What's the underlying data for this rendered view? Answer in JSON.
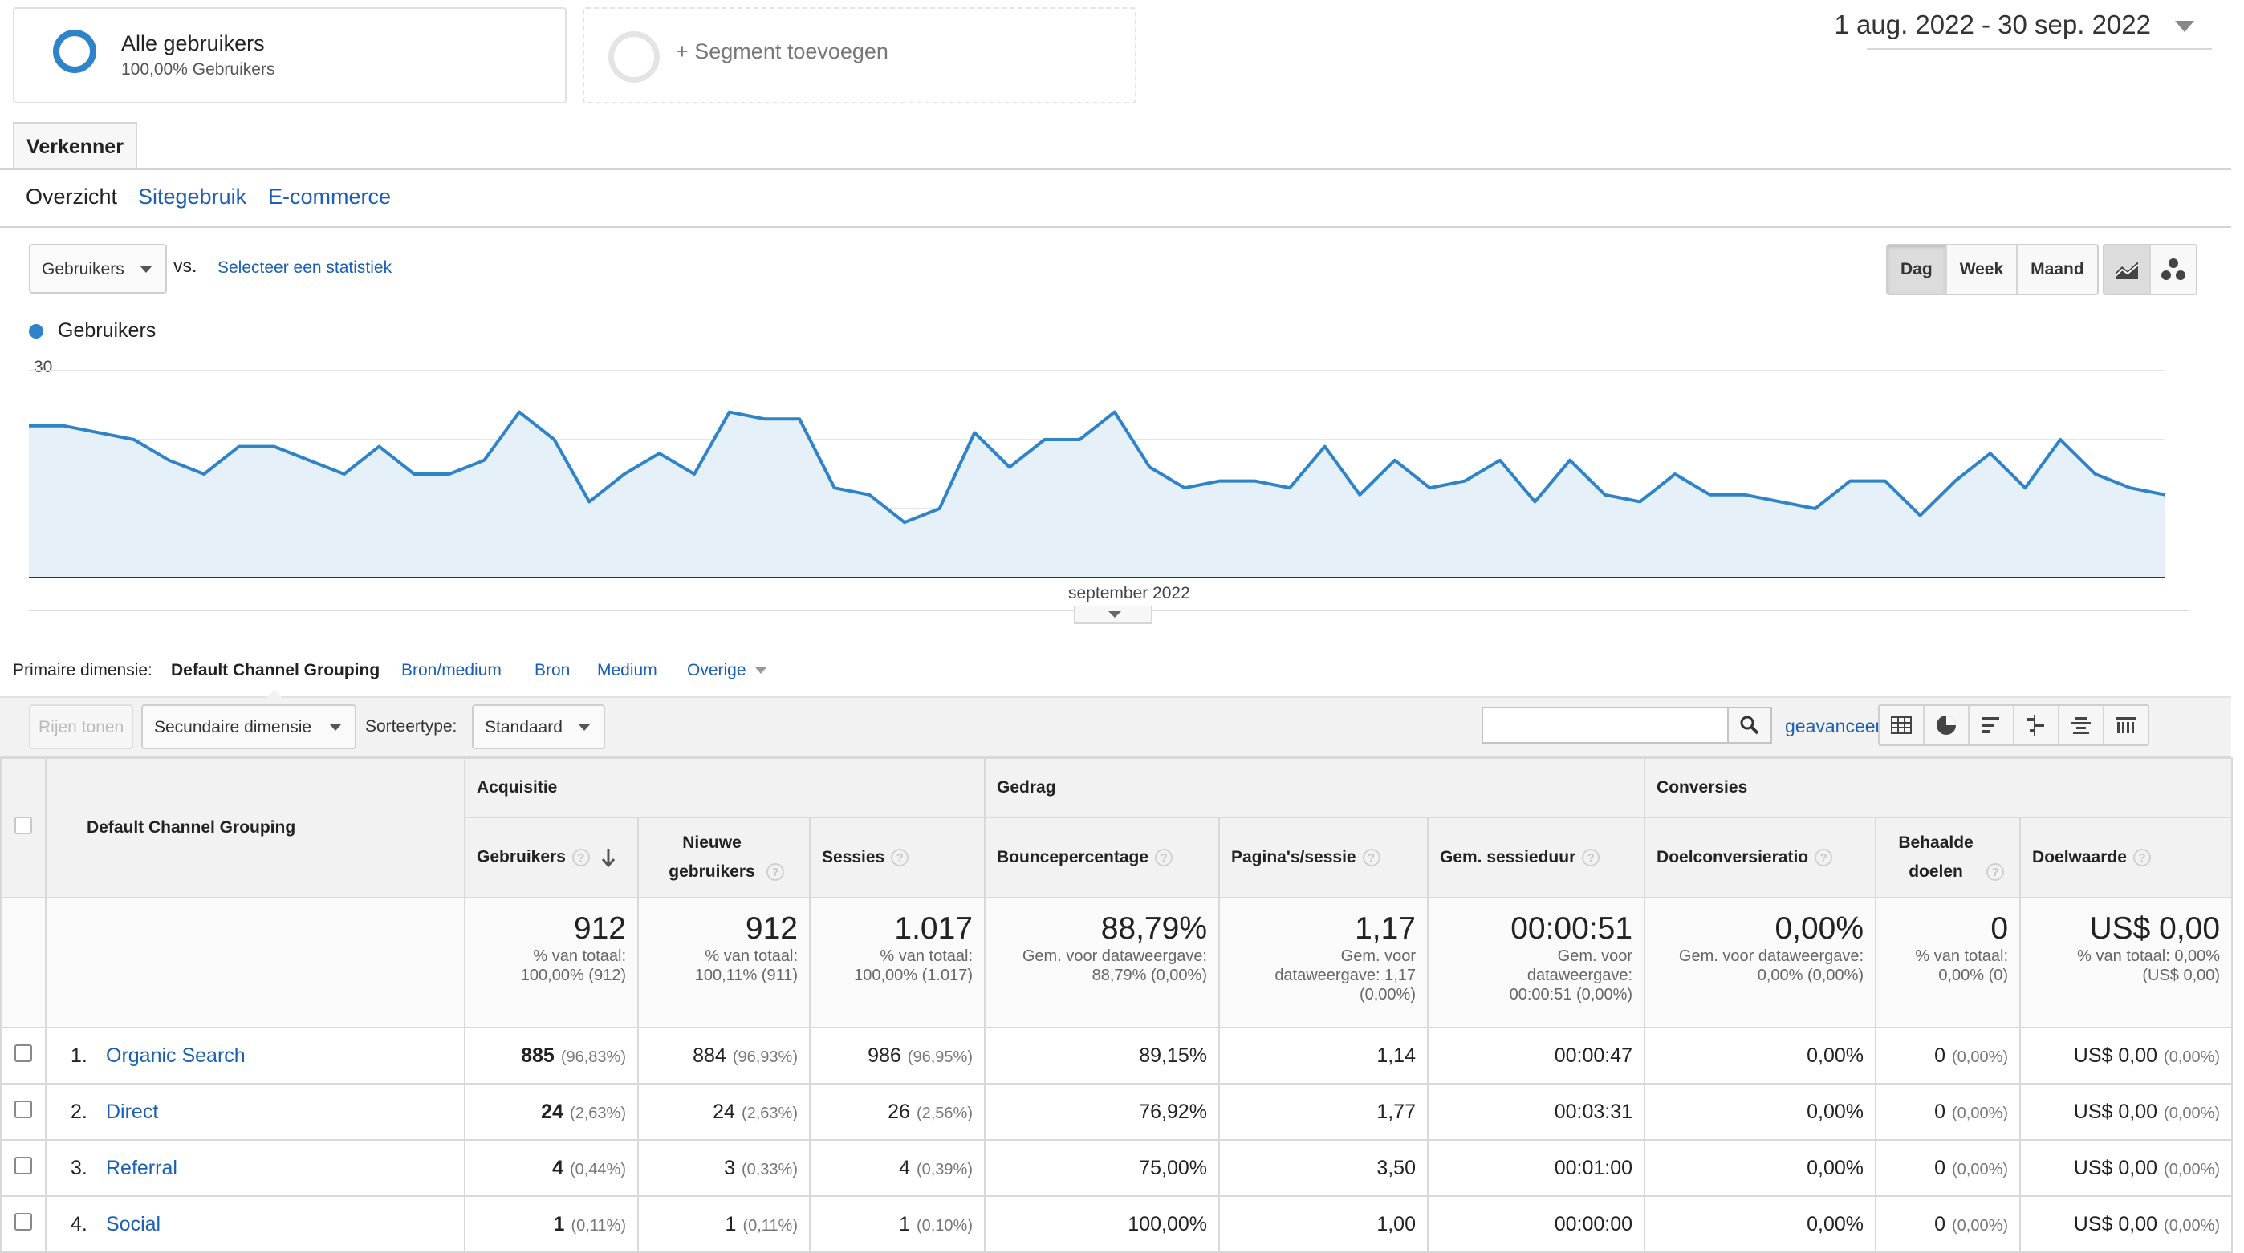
{
  "segments": {
    "all_users": {
      "name": "Alle gebruikers",
      "sub": "100,00% Gebruikers"
    },
    "add_segment": "+ Segment toevoegen"
  },
  "date_range": "1 aug. 2022 - 30 sep. 2022",
  "explorer_tab": "Verkenner",
  "subtabs": [
    "Overzicht",
    "Sitegebruik",
    "E-commerce"
  ],
  "metric_select": "Gebruikers",
  "vs": "vs.",
  "select_stat": "Selecteer een statistiek",
  "granularity": [
    "Dag",
    "Week",
    "Maand"
  ],
  "chart_legend": "Gebruikers",
  "chart_data": {
    "type": "area",
    "series": [
      {
        "name": "Gebruikers",
        "values": [
          22,
          22,
          21,
          20,
          17,
          15,
          19,
          19,
          17,
          15,
          19,
          15,
          15,
          17,
          24,
          20,
          11,
          15,
          18,
          15,
          24,
          23,
          23,
          13,
          12,
          8,
          10,
          21,
          16,
          20,
          20,
          24,
          16,
          13,
          14,
          14,
          13,
          19,
          12,
          17,
          13,
          14,
          17,
          11,
          17,
          12,
          11,
          15,
          12,
          12,
          11,
          10,
          14,
          14,
          9,
          14,
          18,
          13,
          20,
          15,
          13,
          12
        ]
      }
    ],
    "y_ticks": [
      "30",
      "20",
      "10"
    ],
    "ylim": [
      0,
      30
    ],
    "x_label": "september 2022",
    "color": "#2f84c9"
  },
  "dimension": {
    "label": "Primaire dimensie:",
    "active": "Default Channel Grouping",
    "options": [
      "Bron/medium",
      "Bron",
      "Medium",
      "Overige"
    ]
  },
  "toolbar": {
    "show_rows": "Rijen tonen",
    "secondary_dim": "Secundaire dimensie",
    "sort_label": "Sorteertype:",
    "sort_value": "Standaard",
    "advanced": "geavanceerd"
  },
  "table": {
    "dim_header": "Default Channel Grouping",
    "groups": [
      "Acquisitie",
      "Gedrag",
      "Conversies"
    ],
    "columns": [
      "Gebruikers",
      "Nieuwe gebruikers",
      "Sessies",
      "Bouncepercentage",
      "Pagina's/sessie",
      "Gem. sessieduur",
      "Doelconversieratio",
      "Behaalde doelen",
      "Doelwaarde"
    ],
    "totals": [
      {
        "value": "912",
        "l1": "% van totaal:",
        "l2": "100,00% (912)"
      },
      {
        "value": "912",
        "l1": "% van totaal:",
        "l2": "100,11% (911)"
      },
      {
        "value": "1.017",
        "l1": "% van totaal:",
        "l2": "100,00% (1.017)"
      },
      {
        "value": "88,79%",
        "l1": "Gem. voor dataweergave:",
        "l2": "88,79% (0,00%)"
      },
      {
        "value": "1,17",
        "l1": "Gem. voor",
        "l2": "dataweergave: 1,17",
        "l3": "(0,00%)"
      },
      {
        "value": "00:00:51",
        "l1": "Gem. voor",
        "l2": "dataweergave:",
        "l3": "00:00:51 (0,00%)"
      },
      {
        "value": "0,00%",
        "l1": "Gem. voor dataweergave:",
        "l2": "0,00% (0,00%)"
      },
      {
        "value": "0",
        "l1": "% van totaal:",
        "l2": "0,00% (0)"
      },
      {
        "value": "US$ 0,00",
        "l1": "% van totaal: 0,00%",
        "l2": "(US$ 0,00)"
      }
    ],
    "rows": [
      {
        "num": "1.",
        "channel": "Organic Search",
        "users": "885",
        "users_pct": "(96,83%)",
        "new": "884",
        "new_pct": "(96,93%)",
        "sessions": "986",
        "sessions_pct": "(96,95%)",
        "bounce": "89,15%",
        "pps": "1,14",
        "dur": "00:00:47",
        "conv": "0,00%",
        "goals": "0",
        "goals_pct": "(0,00%)",
        "value": "US$ 0,00",
        "value_pct": "(0,00%)"
      },
      {
        "num": "2.",
        "channel": "Direct",
        "users": "24",
        "users_pct": "(2,63%)",
        "new": "24",
        "new_pct": "(2,63%)",
        "sessions": "26",
        "sessions_pct": "(2,56%)",
        "bounce": "76,92%",
        "pps": "1,77",
        "dur": "00:03:31",
        "conv": "0,00%",
        "goals": "0",
        "goals_pct": "(0,00%)",
        "value": "US$ 0,00",
        "value_pct": "(0,00%)"
      },
      {
        "num": "3.",
        "channel": "Referral",
        "users": "4",
        "users_pct": "(0,44%)",
        "new": "3",
        "new_pct": "(0,33%)",
        "sessions": "4",
        "sessions_pct": "(0,39%)",
        "bounce": "75,00%",
        "pps": "3,50",
        "dur": "00:01:00",
        "conv": "0,00%",
        "goals": "0",
        "goals_pct": "(0,00%)",
        "value": "US$ 0,00",
        "value_pct": "(0,00%)"
      },
      {
        "num": "4.",
        "channel": "Social",
        "users": "1",
        "users_pct": "(0,11%)",
        "new": "1",
        "new_pct": "(0,11%)",
        "sessions": "1",
        "sessions_pct": "(0,10%)",
        "bounce": "100,00%",
        "pps": "1,00",
        "dur": "00:00:00",
        "conv": "0,00%",
        "goals": "0",
        "goals_pct": "(0,00%)",
        "value": "US$ 0,00",
        "value_pct": "(0,00%)"
      }
    ]
  }
}
